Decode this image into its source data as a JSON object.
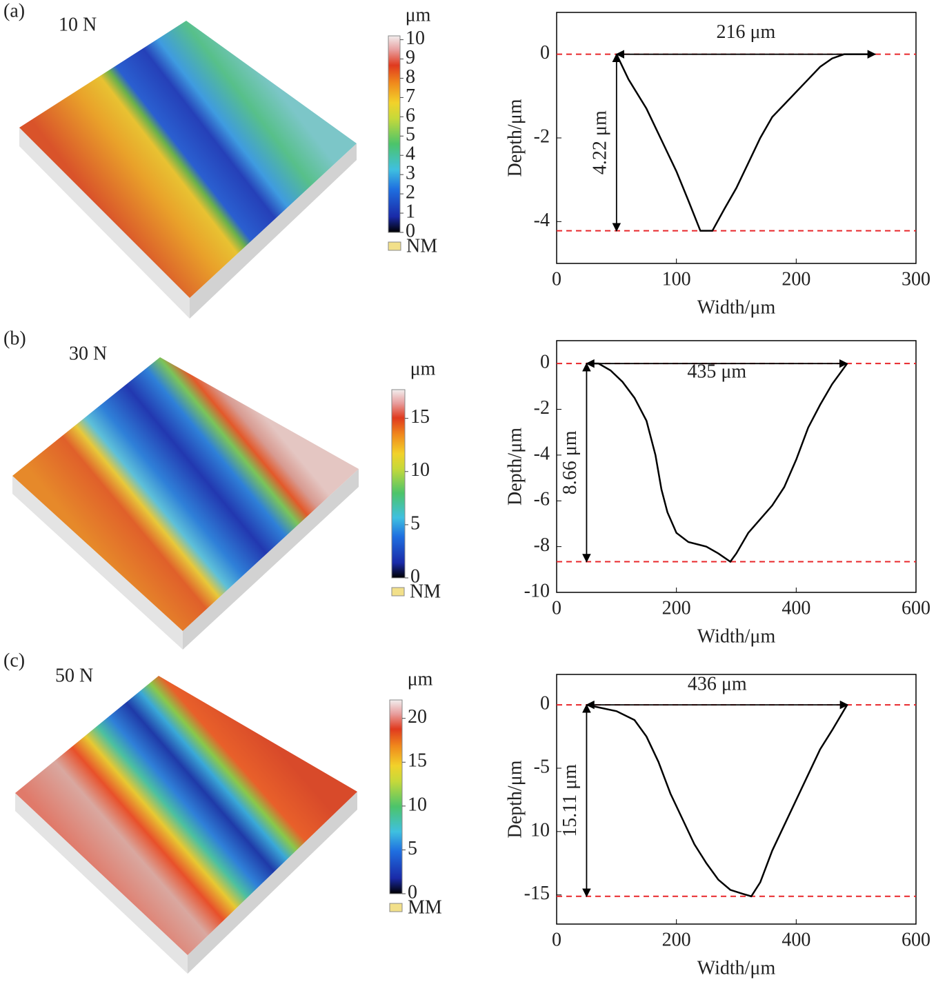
{
  "chart_data": [
    {
      "type": "line",
      "panel_label": "(a)",
      "load_label": "10 N",
      "colorbar": {
        "title": "μm",
        "ylim": [
          0,
          10.2
        ],
        "yticks": [
          0,
          1,
          2,
          3,
          4,
          5,
          6,
          7,
          8,
          9,
          10
        ],
        "legend": "NM"
      },
      "xlabel": "Width/μm",
      "ylabel": "Depth/μm",
      "xlim": [
        0,
        300
      ],
      "ylim": [
        -5,
        1
      ],
      "xticks": [
        0,
        100,
        200,
        300
      ],
      "yticks": [
        0,
        -2,
        -4
      ],
      "x": [
        50,
        60,
        75,
        90,
        100,
        110,
        120,
        130,
        140,
        150,
        160,
        170,
        180,
        190,
        200,
        210,
        220,
        230,
        240,
        265
      ],
      "values": [
        0,
        -0.6,
        -1.3,
        -2.2,
        -2.8,
        -3.5,
        -4.22,
        -4.22,
        -3.7,
        -3.2,
        -2.6,
        -2,
        -1.5,
        -1.2,
        -0.9,
        -0.6,
        -0.3,
        -0.1,
        0,
        0
      ],
      "color": "#000000",
      "ref_lines": {
        "values": [
          0,
          -4.22
        ],
        "color": "#e8262a"
      },
      "width_annotation": {
        "text": "216 μm",
        "x": [
          50,
          266
        ],
        "y": 0
      },
      "depth_annotation": {
        "text": "4.22 μm",
        "x": 50,
        "y": [
          0,
          -4.22
        ]
      }
    },
    {
      "type": "line",
      "panel_label": "(b)",
      "load_label": "30 N",
      "colorbar": {
        "title": "μm",
        "ylim": [
          0,
          17.7
        ],
        "yticks": [
          0,
          5,
          10,
          15
        ],
        "legend": "NM"
      },
      "xlabel": "Width/μm",
      "ylabel": "Depth/μm",
      "xlim": [
        0,
        600
      ],
      "ylim": [
        -10,
        1
      ],
      "xticks": [
        0,
        200,
        400,
        600
      ],
      "yticks": [
        0,
        -2,
        -4,
        -6,
        -8,
        -10
      ],
      "x": [
        50,
        70,
        90,
        110,
        130,
        150,
        165,
        175,
        185,
        200,
        220,
        250,
        270,
        290,
        300,
        320,
        340,
        360,
        380,
        400,
        420,
        440,
        460,
        485
      ],
      "values": [
        0,
        0,
        -0.3,
        -0.8,
        -1.5,
        -2.5,
        -4,
        -5.5,
        -6.5,
        -7.4,
        -7.8,
        -8,
        -8.3,
        -8.66,
        -8.3,
        -7.4,
        -6.8,
        -6.2,
        -5.4,
        -4.2,
        -2.8,
        -1.8,
        -0.9,
        0
      ],
      "color": "#000000",
      "ref_lines": {
        "values": [
          0,
          -8.66
        ],
        "color": "#e8262a"
      },
      "width_annotation": {
        "text": "435 μm",
        "x": [
          50,
          485
        ],
        "y": 0
      },
      "depth_annotation": {
        "text": "8.66 μm",
        "x": 50,
        "y": [
          0,
          -8.66
        ]
      }
    },
    {
      "type": "line",
      "panel_label": "(c)",
      "load_label": "50 N",
      "colorbar": {
        "title": "μm",
        "ylim": [
          0,
          22.1
        ],
        "yticks": [
          0,
          5,
          10,
          15,
          20
        ],
        "legend": "MM"
      },
      "xlabel": "Width/μm",
      "ylabel": "Depth/μm",
      "xlim": [
        0,
        600
      ],
      "ylim": [
        -17.3,
        2.4
      ],
      "xticks": [
        0,
        200,
        400,
        600
      ],
      "yticks": [
        0,
        -5,
        {
          "value": -10,
          "label": "10"
        },
        -15
      ],
      "x": [
        50,
        70,
        100,
        130,
        150,
        170,
        190,
        210,
        230,
        250,
        270,
        290,
        310,
        325,
        340,
        360,
        380,
        400,
        420,
        440,
        460,
        485
      ],
      "values": [
        0,
        -0.2,
        -0.5,
        -1.2,
        -2.5,
        -4.5,
        -7,
        -9,
        -11,
        -12.5,
        -13.8,
        -14.6,
        -14.9,
        -15.11,
        -14,
        -11.5,
        -9.5,
        -7.5,
        -5.5,
        -3.5,
        -2,
        0
      ],
      "color": "#000000",
      "ref_lines": {
        "values": [
          0,
          -15.11
        ],
        "color": "#e8262a"
      },
      "width_annotation": {
        "text": "436 μm",
        "x": [
          50,
          486
        ],
        "y": 0
      },
      "depth_annotation": {
        "text": "15.11 μm",
        "x": 50,
        "y": [
          0,
          -15.11
        ]
      }
    }
  ]
}
